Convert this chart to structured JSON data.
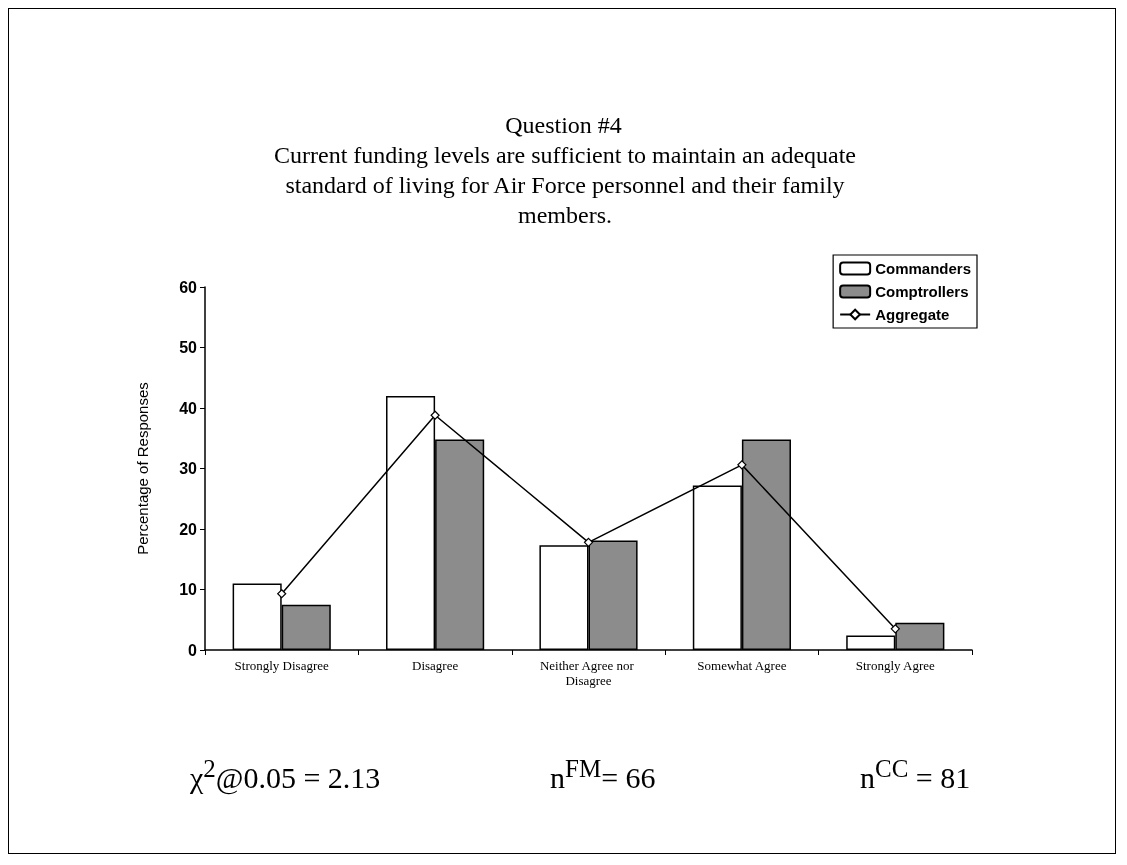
{
  "chart_data": {
    "type": "bar",
    "title": "Question #4",
    "subtitle": "Current funding levels are sufficient to maintain an adequate standard of living for Air Force personnel and their family members.",
    "ylabel": "Percentage of Responses",
    "categories": [
      "Strongly Disagree",
      "Disagree",
      "Neither Agree nor Disagree",
      "Somewhat Agree",
      "Strongly Agree"
    ],
    "series": [
      {
        "name": "Commanders",
        "color": "#ffffff",
        "values": [
          11,
          42,
          17.3,
          27.2,
          2.4
        ]
      },
      {
        "name": "Comptrollers",
        "color": "#8c8c8c",
        "values": [
          7.5,
          34.8,
          18.1,
          34.8,
          4.5
        ]
      },
      {
        "name": "Aggregate",
        "type": "line",
        "color": "#000000",
        "values": [
          9.3,
          38.8,
          17.8,
          30.6,
          3.5
        ],
        "marker": "diamond"
      }
    ],
    "ylim": [
      0,
      60
    ],
    "yticks": [
      0,
      10,
      20,
      30,
      40,
      50,
      60
    ],
    "grid": false,
    "legend": "top right",
    "annotations": [
      "χ$^{2}$@0.05 = 2.13",
      "n$^{FM}$= 66",
      "n$^{CC}$ = 81"
    ]
  }
}
